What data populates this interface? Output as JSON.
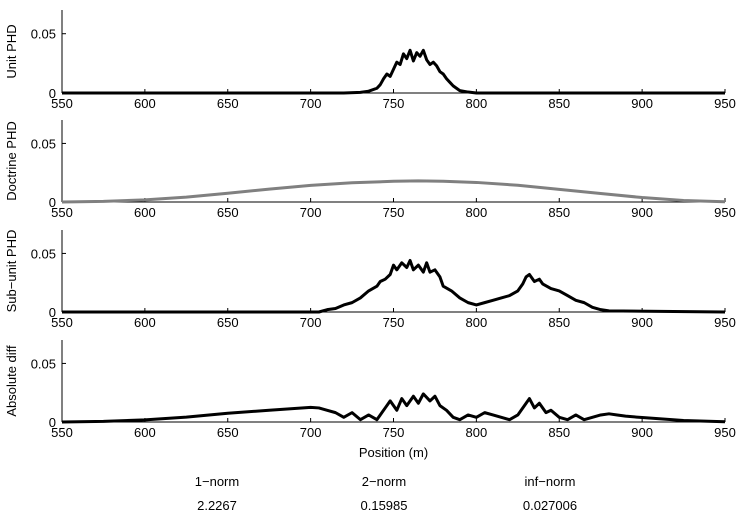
{
  "xlabel": "Position (m)",
  "chart_data": [
    {
      "type": "line",
      "ylabel": "Unit PHD",
      "xlim": [
        550,
        950
      ],
      "ylim": [
        0,
        0.07
      ],
      "xticks": [
        "550",
        "600",
        "650",
        "700",
        "750",
        "800",
        "850",
        "900",
        "950"
      ],
      "yticks": [
        "0",
        "0.05"
      ],
      "series": [
        {
          "color": "#000000",
          "x": [
            550,
            700,
            720,
            730,
            735,
            740,
            742,
            744,
            746,
            748,
            750,
            752,
            754,
            756,
            758,
            760,
            762,
            764,
            766,
            768,
            770,
            772,
            774,
            776,
            778,
            780,
            782,
            784,
            786,
            788,
            790,
            795,
            800,
            950
          ],
          "y": [
            0,
            0,
            0,
            0.0005,
            0.0015,
            0.004,
            0.007,
            0.012,
            0.016,
            0.014,
            0.02,
            0.026,
            0.024,
            0.033,
            0.029,
            0.036,
            0.027,
            0.034,
            0.031,
            0.036,
            0.028,
            0.024,
            0.026,
            0.023,
            0.018,
            0.016,
            0.012,
            0.009,
            0.006,
            0.004,
            0.002,
            0.0008,
            0,
            0
          ]
        }
      ]
    },
    {
      "type": "line",
      "ylabel": "Doctrine PHD",
      "xlim": [
        550,
        950
      ],
      "ylim": [
        0,
        0.07
      ],
      "xticks": [
        "550",
        "600",
        "650",
        "700",
        "750",
        "800",
        "850",
        "900",
        "950"
      ],
      "yticks": [
        "0",
        "0.05"
      ],
      "series": [
        {
          "color": "#808080",
          "x": [
            550,
            575,
            600,
            625,
            650,
            675,
            700,
            725,
            750,
            765,
            780,
            800,
            825,
            850,
            875,
            900,
            925,
            950
          ],
          "y": [
            0,
            0.0005,
            0.0018,
            0.0042,
            0.0075,
            0.011,
            0.0142,
            0.0164,
            0.0177,
            0.018,
            0.0177,
            0.0167,
            0.0143,
            0.0108,
            0.0073,
            0.0038,
            0.0013,
            0.0002
          ]
        }
      ]
    },
    {
      "type": "line",
      "ylabel": "Sub−unit PHD",
      "xlim": [
        550,
        950
      ],
      "ylim": [
        0,
        0.07
      ],
      "xticks": [
        "550",
        "600",
        "650",
        "700",
        "750",
        "800",
        "850",
        "900",
        "950"
      ],
      "yticks": [
        "0",
        "0.05"
      ],
      "series": [
        {
          "color": "#000000",
          "x": [
            550,
            705,
            710,
            715,
            720,
            725,
            730,
            735,
            740,
            742,
            745,
            748,
            750,
            752,
            755,
            758,
            760,
            762,
            765,
            768,
            770,
            772,
            775,
            778,
            780,
            785,
            790,
            795,
            800,
            805,
            810,
            815,
            820,
            825,
            828,
            830,
            832,
            835,
            838,
            840,
            845,
            850,
            855,
            860,
            865,
            870,
            875,
            880,
            950
          ],
          "y": [
            0,
            0,
            0.002,
            0.003,
            0.006,
            0.008,
            0.012,
            0.018,
            0.022,
            0.026,
            0.028,
            0.032,
            0.04,
            0.036,
            0.042,
            0.038,
            0.044,
            0.036,
            0.04,
            0.034,
            0.042,
            0.034,
            0.036,
            0.03,
            0.022,
            0.018,
            0.012,
            0.008,
            0.006,
            0.008,
            0.01,
            0.012,
            0.014,
            0.018,
            0.024,
            0.03,
            0.032,
            0.026,
            0.028,
            0.024,
            0.02,
            0.018,
            0.014,
            0.01,
            0.008,
            0.004,
            0.002,
            0.001,
            0
          ]
        }
      ]
    },
    {
      "type": "line",
      "ylabel": "Absolute diff",
      "xlim": [
        550,
        950
      ],
      "ylim": [
        0,
        0.07
      ],
      "xticks": [
        "550",
        "600",
        "650",
        "700",
        "750",
        "800",
        "850",
        "900",
        "950"
      ],
      "yticks": [
        "0",
        "0.05"
      ],
      "series": [
        {
          "color": "#000000",
          "x": [
            550,
            575,
            600,
            625,
            650,
            675,
            700,
            705,
            710,
            715,
            720,
            725,
            730,
            735,
            740,
            745,
            748,
            752,
            755,
            758,
            762,
            765,
            768,
            772,
            775,
            778,
            782,
            786,
            790,
            795,
            800,
            805,
            810,
            815,
            820,
            825,
            830,
            832,
            835,
            838,
            842,
            845,
            850,
            855,
            860,
            865,
            870,
            875,
            880,
            885,
            890,
            900,
            925,
            950
          ],
          "y": [
            0,
            0.0005,
            0.0018,
            0.0042,
            0.0075,
            0.01,
            0.0125,
            0.012,
            0.01,
            0.008,
            0.004,
            0.008,
            0.002,
            0.006,
            0.002,
            0.012,
            0.018,
            0.01,
            0.02,
            0.014,
            0.022,
            0.016,
            0.024,
            0.018,
            0.022,
            0.014,
            0.01,
            0.004,
            0.002,
            0.006,
            0.004,
            0.008,
            0.006,
            0.004,
            0.002,
            0.006,
            0.016,
            0.02,
            0.012,
            0.016,
            0.008,
            0.01,
            0.004,
            0.002,
            0.006,
            0.002,
            0.004,
            0.006,
            0.007,
            0.006,
            0.005,
            0.0038,
            0.0013,
            0.0002
          ]
        }
      ]
    }
  ],
  "stats": {
    "labels": [
      "1−norm",
      "2−norm",
      "inf−norm"
    ],
    "values": [
      "2.2267",
      "0.15985",
      "0.027006"
    ]
  }
}
